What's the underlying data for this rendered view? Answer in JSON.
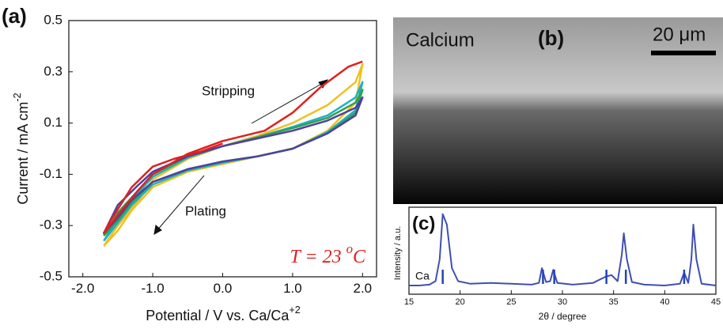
{
  "chart_data": [
    {
      "type": "line",
      "panel_label": "(a)",
      "xlabel": "Potential / V vs. Ca/Ca",
      "xlabel_sup": "+2",
      "ylabel": "Current / mA cm",
      "ylabel_sup": "-2",
      "xlim": [
        -2.2,
        2.2
      ],
      "ylim": [
        -0.5,
        0.5
      ],
      "xticks": [
        {
          "value": -2,
          "label": "-2.0"
        },
        {
          "value": -1,
          "label": "-1.0"
        },
        {
          "value": 0,
          "label": "0.0"
        },
        {
          "value": 1,
          "label": "1.0"
        },
        {
          "value": 2,
          "label": "2.0"
        }
      ],
      "yticks": [
        -0.5,
        -0.3,
        -0.1,
        0.1,
        0.3,
        0.5
      ],
      "annotations": {
        "stripping": "Stripping",
        "plating": "Plating",
        "temp_pre": "T = 23 ",
        "temp_sup": "o",
        "temp_post": "C"
      },
      "series": [
        {
          "color": "#f0c020",
          "x": [
            -1.7,
            -1.5,
            -1.2,
            -1.0,
            -0.5,
            0,
            0.5,
            1.0,
            1.5,
            1.9,
            2.0,
            1.9,
            1.5,
            1.0,
            0.5,
            0,
            -0.5,
            -1.0,
            -1.3,
            -1.5,
            -1.7
          ],
          "values": [
            -0.38,
            -0.3,
            -0.2,
            -0.12,
            -0.04,
            0.01,
            0.05,
            0.1,
            0.17,
            0.26,
            0.33,
            0.18,
            0.07,
            0.0,
            -0.03,
            -0.06,
            -0.09,
            -0.15,
            -0.24,
            -0.32,
            -0.38
          ]
        },
        {
          "color": "#20b0c0",
          "x": [
            -1.7,
            -1.5,
            -1.2,
            -1.0,
            -0.5,
            0,
            0.5,
            1.0,
            1.5,
            1.9,
            2.0,
            1.9,
            1.5,
            1.0,
            0.5,
            0,
            -0.5,
            -1.0,
            -1.3,
            -1.5,
            -1.7
          ],
          "values": [
            -0.36,
            -0.27,
            -0.17,
            -0.11,
            -0.035,
            0.01,
            0.045,
            0.085,
            0.13,
            0.2,
            0.26,
            0.15,
            0.065,
            0.0,
            -0.03,
            -0.055,
            -0.085,
            -0.14,
            -0.22,
            -0.29,
            -0.36
          ]
        },
        {
          "color": "#30a050",
          "x": [
            -1.7,
            -1.5,
            -1.2,
            -1.0,
            -0.5,
            0,
            0.5,
            1.0,
            1.5,
            1.9,
            2.0,
            1.9,
            1.5,
            1.0,
            0.5,
            0,
            -0.5,
            -1.0,
            -1.3,
            -1.5,
            -1.7
          ],
          "values": [
            -0.34,
            -0.25,
            -0.16,
            -0.1,
            -0.03,
            0.01,
            0.045,
            0.08,
            0.12,
            0.18,
            0.23,
            0.14,
            0.06,
            0.0,
            -0.03,
            -0.05,
            -0.08,
            -0.13,
            -0.21,
            -0.28,
            -0.34
          ]
        },
        {
          "color": "#5040a0",
          "x": [
            -1.7,
            -1.5,
            -1.2,
            -1.0,
            -0.5,
            0,
            0.5,
            1.0,
            1.5,
            1.9,
            2.0,
            1.9,
            1.5,
            1.0,
            0.5,
            0,
            -0.5,
            -1.0,
            -1.3,
            -1.5,
            -1.7
          ],
          "values": [
            -0.33,
            -0.22,
            -0.14,
            -0.09,
            -0.03,
            0.01,
            0.04,
            0.07,
            0.11,
            0.16,
            0.2,
            0.13,
            0.06,
            0.0,
            -0.03,
            -0.05,
            -0.08,
            -0.13,
            -0.2,
            -0.27,
            -0.33
          ]
        },
        {
          "color": "#e02020",
          "x": [
            0,
            -0.3,
            -0.7,
            -1.0,
            -1.3,
            -1.6,
            -1.7,
            -1.5,
            -1.2,
            -1.0,
            -0.5,
            0,
            0.3,
            0.6,
            1.0,
            1.4,
            1.8,
            2.0
          ],
          "values": [
            0.02,
            -0.01,
            -0.04,
            -0.07,
            -0.15,
            -0.28,
            -0.33,
            -0.26,
            -0.16,
            -0.1,
            -0.02,
            0.03,
            0.05,
            0.07,
            0.14,
            0.24,
            0.32,
            0.34
          ]
        }
      ]
    },
    {
      "type": "line",
      "panel_label": "(c)",
      "xlabel": "2θ / degree",
      "ylabel": "Intensity / a.u.",
      "xlim": [
        15,
        45
      ],
      "ylim": [
        0,
        100
      ],
      "xticks": [
        15,
        20,
        25,
        30,
        35,
        40,
        45
      ],
      "reference": {
        "label": "Ca",
        "color": "#2244bb",
        "positions": [
          18.3,
          28.1,
          29.2,
          34.3,
          36.2,
          41.9
        ]
      },
      "series": [
        {
          "color": "#3f4fb0",
          "x": [
            15,
            16,
            17,
            17.6,
            18,
            18.3,
            18.7,
            19.2,
            19.8,
            21,
            23,
            25,
            27,
            27.7,
            28,
            28.4,
            28.8,
            29.1,
            29.5,
            31,
            33,
            34.2,
            34.8,
            35.4,
            35.8,
            36,
            36.3,
            36.8,
            38,
            40,
            41.5,
            41.9,
            42.3,
            42.6,
            42.8,
            43.1,
            43.6,
            45
          ],
          "values": [
            10,
            10,
            11,
            15,
            40,
            92,
            80,
            30,
            15,
            12,
            13,
            12,
            11,
            13,
            30,
            14,
            15,
            28,
            13,
            11,
            13,
            20,
            22,
            15,
            45,
            70,
            40,
            14,
            11,
            10,
            12,
            25,
            13,
            40,
            80,
            40,
            12,
            10
          ]
        }
      ]
    }
  ],
  "panel_b": {
    "label": "(b)",
    "caption": "Calcium",
    "scale_bar": "20 μm"
  }
}
